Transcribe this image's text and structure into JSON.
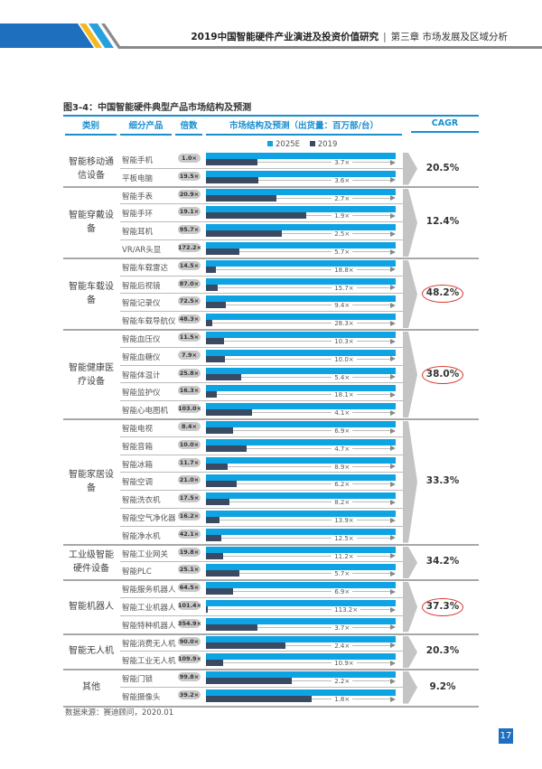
{
  "header": {
    "report_title": "2019中国智能硬件产业演进及投资价值研究",
    "separator": "|",
    "chapter": "第三章 市场发展及区域分析",
    "colors": {
      "blue": "#1f6fbf",
      "yellow": "#f5b920",
      "light_blue": "#27a0e0",
      "gray": "#8a8a8a"
    }
  },
  "figure_title": "图3-4：中国智能硬件典型产品市场结构及预测",
  "columns": {
    "category": "类别",
    "product": "细分产品",
    "multiple": "倍数",
    "structure": "市场结构及预测（出货量：百万部/台）",
    "cagr": "CAGR"
  },
  "source": "数据来源：赛迪顾问，2020.01",
  "page_number": "17",
  "chart_data": {
    "type": "bar",
    "legend": [
      "2025E",
      "2019"
    ],
    "colors": {
      "2025E": "#0ea3e2",
      "2019": "#3a4a62"
    },
    "note": "",
    "groups": [
      {
        "category": "智能移动通信设备",
        "cagr": "20.5%",
        "highlighted": false,
        "items": [
          {
            "product": "智能手机",
            "multiple": "1.0×",
            "growth": "3.7×",
            "ratio": 3.7
          },
          {
            "product": "平板电脑",
            "multiple": "19.5×",
            "growth": "3.6×",
            "ratio": 3.6
          }
        ]
      },
      {
        "category": "智能穿戴设备",
        "cagr": "12.4%",
        "highlighted": false,
        "items": [
          {
            "product": "智能手表",
            "multiple": "20.9×",
            "growth": "2.7×",
            "ratio": 2.7
          },
          {
            "product": "智能手环",
            "multiple": "19.1×",
            "growth": "1.9×",
            "ratio": 1.9
          },
          {
            "product": "智能耳机",
            "multiple": "95.7×",
            "growth": "2.5×",
            "ratio": 2.5
          },
          {
            "product": "VR/AR头显",
            "multiple": "172.2×",
            "growth": "5.7×",
            "ratio": 5.7
          }
        ]
      },
      {
        "category": "智能车载设备",
        "cagr": "48.2%",
        "highlighted": true,
        "items": [
          {
            "product": "智能车载雷达",
            "multiple": "14.5×",
            "growth": "18.8×",
            "ratio": 18.8
          },
          {
            "product": "智能后视镜",
            "multiple": "87.0×",
            "growth": "15.7×",
            "ratio": 15.7
          },
          {
            "product": "智能记录仪",
            "multiple": "72.5×",
            "growth": "9.4×",
            "ratio": 9.4
          },
          {
            "product": "智能车载导航仪",
            "multiple": "48.3×",
            "growth": "28.3×",
            "ratio": 28.3
          }
        ]
      },
      {
        "category": "智能健康医疗设备",
        "cagr": "38.0%",
        "highlighted": true,
        "items": [
          {
            "product": "智能血压仪",
            "multiple": "11.5×",
            "growth": "10.3×",
            "ratio": 10.3
          },
          {
            "product": "智能血糖仪",
            "multiple": "7.9×",
            "growth": "10.0×",
            "ratio": 10.0
          },
          {
            "product": "智能体温计",
            "multiple": "25.8×",
            "growth": "5.4×",
            "ratio": 5.4
          },
          {
            "product": "智能监护仪",
            "multiple": "16.3×",
            "growth": "18.1×",
            "ratio": 18.1
          },
          {
            "product": "智能心电图机",
            "multiple": "103.0×",
            "growth": "4.1×",
            "ratio": 4.1
          }
        ]
      },
      {
        "category": "智能家居设备",
        "cagr": "33.3%",
        "highlighted": false,
        "items": [
          {
            "product": "智能电视",
            "multiple": "8.4×",
            "growth": "6.9×",
            "ratio": 6.9
          },
          {
            "product": "智能音箱",
            "multiple": "10.0×",
            "growth": "4.7×",
            "ratio": 4.7
          },
          {
            "product": "智能冰箱",
            "multiple": "11.7×",
            "growth": "8.9×",
            "ratio": 8.9
          },
          {
            "product": "智能空调",
            "multiple": "21.0×",
            "growth": "6.2×",
            "ratio": 6.2
          },
          {
            "product": "智能洗衣机",
            "multiple": "17.5×",
            "growth": "8.2×",
            "ratio": 8.2
          },
          {
            "product": "智能空气净化器",
            "multiple": "16.2×",
            "growth": "13.9×",
            "ratio": 13.9
          },
          {
            "product": "智能净水机",
            "multiple": "42.1×",
            "growth": "12.5×",
            "ratio": 12.5
          }
        ]
      },
      {
        "category": "工业级智能硬件设备",
        "cagr": "34.2%",
        "highlighted": false,
        "items": [
          {
            "product": "智能工业网关",
            "multiple": "19.8×",
            "growth": "11.2×",
            "ratio": 11.2
          },
          {
            "product": "智能PLC",
            "multiple": "25.1×",
            "growth": "5.7×",
            "ratio": 5.7
          }
        ]
      },
      {
        "category": "智能机器人",
        "cagr": "37.3%",
        "highlighted": true,
        "items": [
          {
            "product": "智能服务机器人",
            "multiple": "64.5×",
            "growth": "6.9×",
            "ratio": 6.9
          },
          {
            "product": "智能工业机器人",
            "multiple": "101.4×",
            "growth": "113.2×",
            "ratio": 113.2
          },
          {
            "product": "智能特种机器人",
            "multiple": "354.9×",
            "growth": "3.7×",
            "ratio": 3.7
          }
        ]
      },
      {
        "category": "智能无人机",
        "cagr": "20.3%",
        "highlighted": false,
        "items": [
          {
            "product": "智能消费无人机",
            "multiple": "90.0×",
            "growth": "2.4×",
            "ratio": 2.4
          },
          {
            "product": "智能工业无人机",
            "multiple": "109.9×",
            "growth": "10.9×",
            "ratio": 10.9
          }
        ]
      },
      {
        "category": "其他",
        "cagr": "9.2%",
        "highlighted": false,
        "items": [
          {
            "product": "智能门锁",
            "multiple": "99.8×",
            "growth": "2.2×",
            "ratio": 2.2
          },
          {
            "product": "智能摄像头",
            "multiple": "39.2×",
            "growth": "1.8×",
            "ratio": 1.8
          }
        ]
      }
    ]
  }
}
